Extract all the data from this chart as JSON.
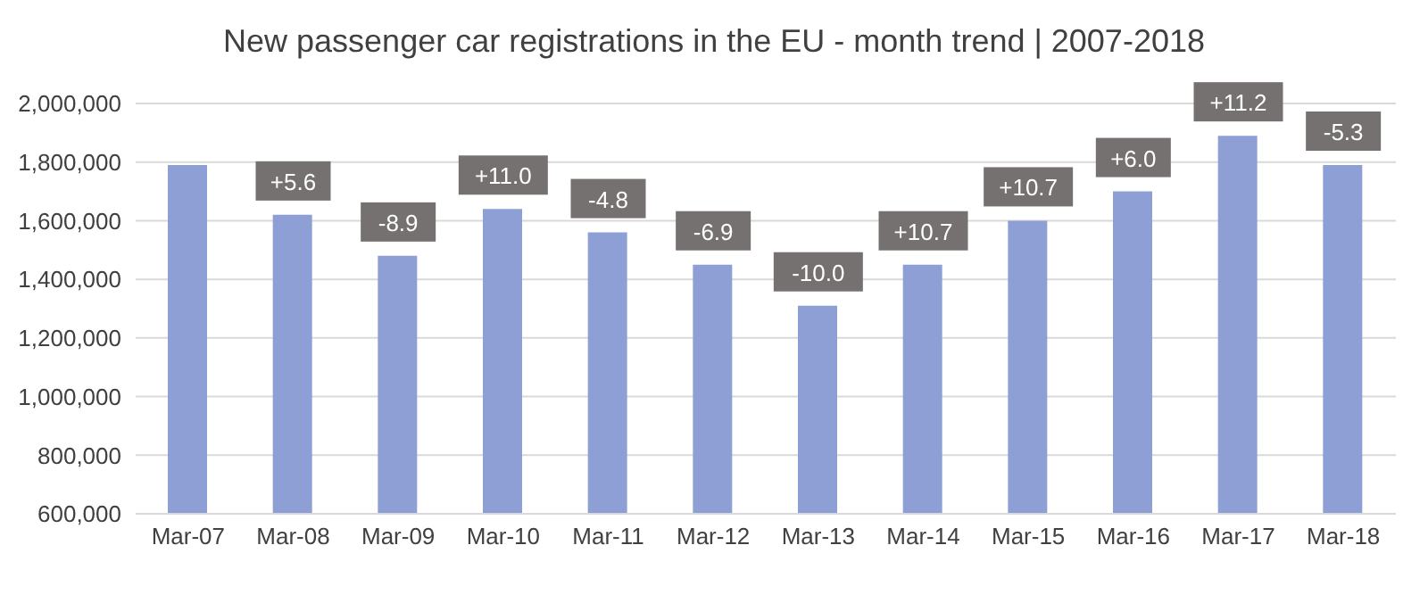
{
  "chart_data": {
    "type": "bar",
    "title": "New passenger car registrations in the EU - month trend | 2007-2018",
    "categories": [
      "Mar-07",
      "Mar-08",
      "Mar-09",
      "Mar-10",
      "Mar-11",
      "Mar-12",
      "Mar-13",
      "Mar-14",
      "Mar-15",
      "Mar-16",
      "Mar-17",
      "Mar-18"
    ],
    "values": [
      1790000,
      1620000,
      1480000,
      1640000,
      1560000,
      1450000,
      1310000,
      1450000,
      1600000,
      1700000,
      1890000,
      1790000
    ],
    "annotations": [
      {
        "text": "+5.6",
        "x": "Mar-08",
        "y": 1620000
      },
      {
        "text": "-8.9",
        "x": "Mar-09",
        "y": 1480000
      },
      {
        "text": "+11.0",
        "x": "Mar-10",
        "y": 1640000
      },
      {
        "text": "-4.8",
        "x": "Mar-11",
        "y": 1560000
      },
      {
        "text": "-6.9",
        "x": "Mar-12",
        "y": 1450000
      },
      {
        "text": "-10.0",
        "x": "Mar-13",
        "y": 1310000
      },
      {
        "text": "+10.7",
        "x": "Mar-14",
        "y": 1450000
      },
      {
        "text": "+10.7",
        "x": "Mar-15",
        "y": 1600000
      },
      {
        "text": "+6.0",
        "x": "Mar-16",
        "y": 1700000
      },
      {
        "text": "+11.2",
        "x": "Mar-17",
        "y": 1890000
      },
      {
        "text": "-5.3",
        "x": "Mar-18",
        "y": 1790000
      }
    ],
    "color": "#8e9fd5",
    "ylim": [
      600000,
      2000000
    ],
    "yticks": [
      {
        "value": 600000,
        "label": "600,000"
      },
      {
        "value": 800000,
        "label": "800,000"
      },
      {
        "value": 1000000,
        "label": "1,000,000"
      },
      {
        "value": 1200000,
        "label": "1,200,000"
      },
      {
        "value": 1400000,
        "label": "1,400,000"
      },
      {
        "value": 1600000,
        "label": "1,600,000"
      },
      {
        "value": 1800000,
        "label": "1,800,000"
      },
      {
        "value": 2000000,
        "label": "2,000,000"
      }
    ],
    "grid": "y"
  }
}
